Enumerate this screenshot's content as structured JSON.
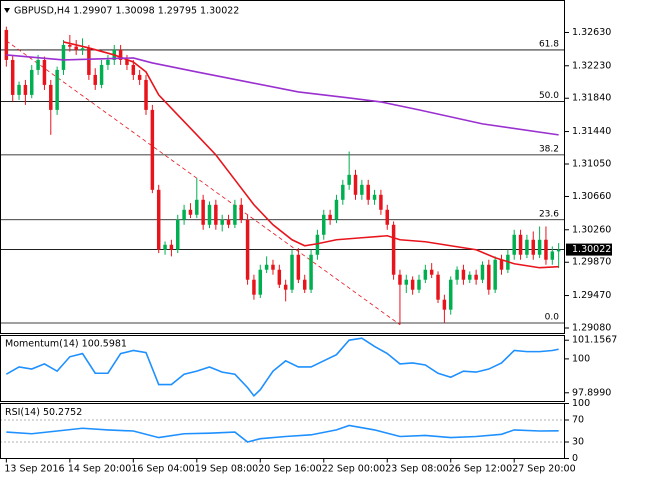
{
  "chart_data": [
    {
      "type": "candlestick",
      "title": "GBPUSD,H4  1.29907 1.30098 1.29795 1.30022",
      "xlim": [
        -1,
        88
      ],
      "ylim": [
        1.2902,
        1.3302
      ],
      "up_color": "#00b050",
      "down_color": "#e8141c",
      "yticks": [
        {
          "value": 1.3263,
          "label": "1.32630"
        },
        {
          "value": 1.3223,
          "label": "1.32230"
        },
        {
          "value": 1.3184,
          "label": "1.31840"
        },
        {
          "value": 1.3144,
          "label": "1.31440"
        },
        {
          "value": 1.3105,
          "label": "1.31050"
        },
        {
          "value": 1.3066,
          "label": "1.30660"
        },
        {
          "value": 1.3026,
          "label": "1.30260"
        },
        {
          "value": 1.2987,
          "label": "1.29870"
        },
        {
          "value": 1.2947,
          "label": "1.29470"
        },
        {
          "value": 1.2908,
          "label": "1.29080"
        }
      ],
      "bid": 1.30022,
      "open": [
        1.3266,
        1.323,
        1.3188,
        1.32,
        1.3188,
        1.3218,
        1.323,
        1.32,
        1.317,
        1.3218,
        1.3248,
        1.3246,
        1.3242,
        1.3244,
        1.3212,
        1.32,
        1.3224,
        1.323,
        1.3242,
        1.323,
        1.3224,
        1.3212,
        1.3206,
        1.317,
        1.3074,
        1.3002,
        1.3008,
        1.3002,
        1.3038,
        1.305,
        1.3044,
        1.3062,
        1.3032,
        1.3056,
        1.3032,
        1.3038,
        1.3032,
        1.3056,
        1.3038,
        1.2966,
        1.2948,
        1.2978,
        1.2984,
        1.2978,
        1.296,
        1.2954,
        1.2996,
        1.2966,
        1.2954,
        1.2996,
        1.302,
        1.3044,
        1.3038,
        1.3062,
        1.308,
        1.3092,
        1.3068,
        1.308,
        1.3062,
        1.3068,
        1.305,
        1.3032,
        1.2972,
        1.296,
        1.2966,
        1.2954,
        1.2966,
        1.2978,
        1.2972,
        1.2942,
        1.293,
        1.2966,
        1.2978,
        1.2966,
        1.2972,
        1.2966,
        1.2984,
        1.2954,
        1.299,
        1.2978,
        1.2996,
        1.302,
        1.2996,
        1.3014,
        1.2996,
        1.3014,
        1.299,
        1.3
      ],
      "high": [
        1.327,
        1.3236,
        1.3204,
        1.3206,
        1.3224,
        1.3236,
        1.3234,
        1.3206,
        1.3222,
        1.3254,
        1.326,
        1.3254,
        1.3256,
        1.3248,
        1.322,
        1.323,
        1.3236,
        1.3248,
        1.3248,
        1.3236,
        1.323,
        1.3218,
        1.3212,
        1.3176,
        1.308,
        1.3012,
        1.3014,
        1.3044,
        1.3056,
        1.3058,
        1.3088,
        1.3068,
        1.306,
        1.3062,
        1.3044,
        1.3044,
        1.3062,
        1.3064,
        1.3044,
        1.2972,
        1.2984,
        1.2994,
        1.299,
        1.2984,
        1.2966,
        1.3002,
        1.3004,
        1.2972,
        1.3002,
        1.3026,
        1.305,
        1.305,
        1.3068,
        1.3086,
        1.312,
        1.3098,
        1.3086,
        1.3086,
        1.3074,
        1.3074,
        1.3056,
        1.3036,
        1.2978,
        1.2972,
        1.297,
        1.2972,
        1.2984,
        1.2986,
        1.2976,
        1.2948,
        1.297,
        1.2982,
        1.2984,
        1.2976,
        1.2978,
        1.2988,
        1.299,
        1.2994,
        1.2996,
        1.3002,
        1.3026,
        1.3026,
        1.302,
        1.3024,
        1.303,
        1.303,
        1.3006,
        1.301
      ],
      "low": [
        1.3222,
        1.318,
        1.3182,
        1.3176,
        1.3184,
        1.3212,
        1.3194,
        1.314,
        1.3164,
        1.3212,
        1.324,
        1.3236,
        1.3236,
        1.3206,
        1.3194,
        1.3196,
        1.3218,
        1.3224,
        1.3224,
        1.3218,
        1.3206,
        1.32,
        1.3164,
        1.307,
        1.2998,
        1.2996,
        1.2994,
        1.2998,
        1.3032,
        1.304,
        1.304,
        1.3026,
        1.3028,
        1.3026,
        1.3024,
        1.3028,
        1.3028,
        1.3034,
        1.296,
        1.2942,
        1.2944,
        1.2974,
        1.2972,
        1.2956,
        1.294,
        1.295,
        1.2962,
        1.295,
        1.295,
        1.299,
        1.3014,
        1.3032,
        1.3034,
        1.3056,
        1.3074,
        1.3062,
        1.3062,
        1.3056,
        1.3056,
        1.3044,
        1.3026,
        1.2966,
        1.2912,
        1.295,
        1.2948,
        1.295,
        1.2962,
        1.2968,
        1.2938,
        1.2914,
        1.2924,
        1.296,
        1.296,
        1.2962,
        1.296,
        1.2962,
        1.2948,
        1.295,
        1.2972,
        1.2974,
        1.299,
        1.299,
        1.2992,
        1.299,
        1.2992,
        1.2984,
        1.2984,
        1.298
      ],
      "close": [
        1.323,
        1.3188,
        1.32,
        1.3188,
        1.3218,
        1.323,
        1.32,
        1.317,
        1.3218,
        1.3248,
        1.3246,
        1.3242,
        1.3244,
        1.3212,
        1.32,
        1.3224,
        1.323,
        1.3242,
        1.323,
        1.3224,
        1.3212,
        1.3206,
        1.317,
        1.3074,
        1.3002,
        1.3008,
        1.3002,
        1.3038,
        1.305,
        1.3044,
        1.3062,
        1.3032,
        1.3056,
        1.3032,
        1.3038,
        1.3032,
        1.3056,
        1.3038,
        1.2966,
        1.2948,
        1.2978,
        1.2984,
        1.2978,
        1.296,
        1.2954,
        1.2996,
        1.2966,
        1.2954,
        1.2996,
        1.302,
        1.3044,
        1.3038,
        1.3062,
        1.308,
        1.3092,
        1.3068,
        1.308,
        1.3062,
        1.3068,
        1.305,
        1.3032,
        1.2972,
        1.296,
        1.2966,
        1.2954,
        1.2966,
        1.2978,
        1.2972,
        1.2942,
        1.293,
        1.2966,
        1.2978,
        1.2966,
        1.2972,
        1.2966,
        1.2984,
        1.2954,
        1.299,
        1.2978,
        1.2996,
        1.302,
        1.2996,
        1.3014,
        1.2996,
        1.3014,
        1.299,
        1.3,
        1.3002
      ],
      "overlays": [
        {
          "color": "#e8141c",
          "x": [
            9,
            13,
            17,
            20,
            22,
            24,
            27,
            30,
            33,
            36,
            39,
            42,
            45,
            47,
            49,
            52,
            56,
            60,
            62,
            66,
            70,
            74,
            77,
            80,
            84,
            87
          ],
          "values": [
            1.32516,
            1.32444,
            1.3236,
            1.32276,
            1.32156,
            1.3188,
            1.3164,
            1.314,
            1.3116,
            1.3086,
            1.3056,
            1.3032,
            1.3014,
            1.30068,
            1.30092,
            1.3014,
            1.30164,
            1.30188,
            1.3014,
            1.30116,
            1.30068,
            1.3002,
            1.29924,
            1.29852,
            1.29804,
            1.29816
          ]
        },
        {
          "color": "#9b30d0",
          "x": [
            0,
            9,
            20,
            23,
            30,
            38,
            46,
            54,
            59,
            65,
            75,
            87
          ],
          "values": [
            1.3236,
            1.323,
            1.32324,
            1.32264,
            1.32156,
            1.32036,
            1.31916,
            1.31844,
            1.31796,
            1.317,
            1.31532,
            1.314
          ]
        }
      ],
      "trendline": {
        "color": "#e8141c",
        "x": [
          0,
          62
        ],
        "values": [
          1.3253,
          1.2912
        ]
      },
      "fib": [
        {
          "price": 1.3242,
          "label": "61.8"
        },
        {
          "price": 1.318,
          "label": "50.0"
        },
        {
          "price": 1.3116,
          "label": "38.2"
        },
        {
          "price": 1.3038,
          "label": "23.6"
        },
        {
          "price": 1.2914,
          "label": "0.0"
        }
      ]
    },
    {
      "type": "line",
      "title": "Momentum(14) 100.5981",
      "color": "#1e90ff",
      "xlim": [
        -1,
        88
      ],
      "ylim": [
        97.39,
        101.48
      ],
      "yticks": [
        101.1567,
        100,
        {
          "value": 97.899,
          "label": "97.8990"
        }
      ],
      "x": [
        0,
        2,
        4,
        6,
        8,
        10,
        12,
        14,
        16,
        18,
        20,
        22,
        24,
        26,
        28,
        30,
        32,
        34,
        36,
        38,
        39,
        40,
        42,
        44,
        46,
        48,
        50,
        52,
        54,
        56,
        58,
        60,
        62,
        64,
        66,
        68,
        70,
        72,
        74,
        76,
        78,
        80,
        82,
        84,
        86,
        87
      ],
      "values": [
        99.05,
        99.5,
        99.37,
        99.69,
        99.24,
        100.13,
        100.33,
        99.11,
        99.11,
        100.33,
        100.52,
        100.39,
        98.41,
        98.41,
        99.05,
        99.24,
        99.5,
        99.18,
        99.05,
        98.22,
        97.71,
        98.09,
        99.24,
        99.88,
        99.5,
        99.5,
        99.88,
        100.26,
        101.16,
        101.28,
        100.77,
        100.33,
        99.69,
        99.75,
        99.62,
        99.11,
        98.86,
        99.24,
        99.18,
        99.37,
        99.75,
        100.52,
        100.45,
        100.45,
        100.52,
        100.5981
      ]
    },
    {
      "type": "line",
      "title": "RSI(14) 50.2752",
      "color": "#1e90ff",
      "xlim": [
        -1,
        88
      ],
      "ylim": [
        0,
        100
      ],
      "yticks": [
        100,
        70,
        30,
        0
      ],
      "grid": true,
      "x": [
        0,
        4,
        8,
        12,
        16,
        20,
        24,
        28,
        32,
        36,
        38,
        40,
        44,
        48,
        52,
        54,
        58,
        62,
        66,
        70,
        74,
        78,
        80,
        84,
        87
      ],
      "values": [
        48,
        45,
        50,
        55,
        52,
        50,
        38,
        45,
        46,
        48,
        30,
        36,
        40,
        43,
        52,
        60,
        52,
        40,
        42,
        38,
        40,
        44,
        52,
        50,
        50.2752
      ],
      "xticks": [
        {
          "value": 0,
          "label": "13 Sep 2016"
        },
        {
          "value": 10,
          "label": "14 Sep 20:00"
        },
        {
          "value": 20,
          "label": "16 Sep 04:00"
        },
        {
          "value": 30,
          "label": "19 Sep 08:00"
        },
        {
          "value": 40,
          "label": "20 Sep 16:00"
        },
        {
          "value": 50,
          "label": "22 Sep 00:00"
        },
        {
          "value": 60,
          "label": "23 Sep 08:00"
        },
        {
          "value": 70,
          "label": "26 Sep 12:00"
        },
        {
          "value": 80,
          "label": "27 Sep 20:00"
        }
      ]
    }
  ]
}
